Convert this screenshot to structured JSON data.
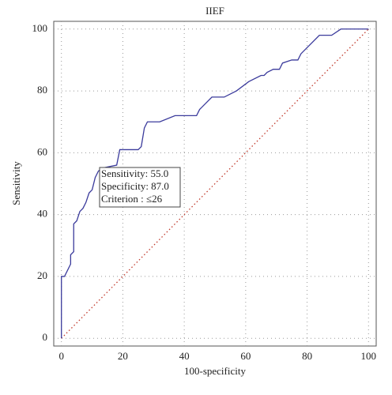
{
  "chart_data": {
    "type": "line",
    "title": "IIEF",
    "x_label": "100-specificity",
    "y_label": "Sensitivity",
    "series": [
      {
        "color": "#3b3b9c",
        "x": [
          0,
          0,
          1,
          3,
          3,
          4,
          4,
          5,
          6,
          7,
          8,
          9,
          10,
          11,
          12,
          13,
          18,
          19,
          25,
          26,
          27,
          28,
          32,
          37,
          44,
          45,
          49,
          53,
          57,
          61,
          65,
          66,
          67,
          69,
          71,
          72,
          75,
          77,
          78,
          84,
          88,
          91,
          100
        ],
        "values": [
          0,
          20,
          20,
          24,
          27,
          28,
          37,
          38,
          41,
          42,
          44,
          47,
          48,
          52,
          54,
          55,
          56,
          61,
          61,
          62,
          68,
          70,
          70,
          72,
          72,
          74,
          78,
          78,
          80,
          83,
          85,
          85,
          86,
          87,
          87,
          89,
          90,
          90,
          92,
          98,
          98,
          100,
          100
        ]
      }
    ],
    "diagonal": true,
    "diagonal_color": "#c0392b",
    "annotation": [
      "Sensitivity: 55.0",
      "Specificity: 87.0",
      "Criterion : ≤26"
    ],
    "xlim": [
      -2.5,
      102.5
    ],
    "ylim": [
      -2.5,
      102.5
    ],
    "xticks": [
      0,
      20,
      40,
      60,
      80,
      100
    ],
    "yticks": [
      0,
      20,
      40,
      60,
      80,
      100
    ],
    "grid": true
  }
}
